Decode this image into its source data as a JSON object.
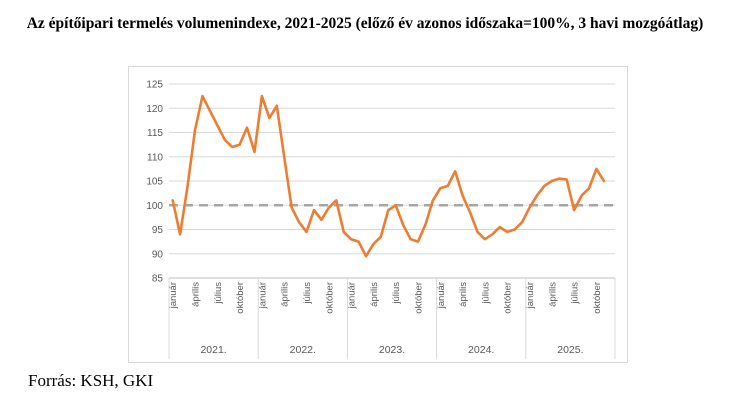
{
  "page": {
    "title": "Az építőipari termelés volumenindexe, 2021-2025 (előző év azonos időszaka=100%, 3 havi mozgóátlag)",
    "source": "Forrás: KSH, GKI"
  },
  "chart_data": {
    "type": "line",
    "title": "Az építőipari termelés volumenindexe, 2021-2025 (előző év azonos időszaka=100%, 3 havi mozgóátlag)",
    "unit": "%",
    "ylim": [
      85,
      125
    ],
    "y_ticks": [
      85,
      90,
      95,
      100,
      105,
      110,
      115,
      120,
      125
    ],
    "grid": true,
    "legend": "none",
    "reference_line": {
      "value": 100,
      "style": "dashed",
      "color": "#a6a6a6"
    },
    "x_structure": {
      "years": [
        {
          "label": "2021.",
          "months": 12
        },
        {
          "label": "2022.",
          "months": 12
        },
        {
          "label": "2023.",
          "months": 12
        },
        {
          "label": "2024.",
          "months": 12
        },
        {
          "label": "2025.",
          "months": 12
        }
      ],
      "month_tick_labels": [
        "január",
        "április",
        "július",
        "október"
      ],
      "month_tick_positions": [
        0,
        3,
        6,
        9
      ]
    },
    "series": [
      {
        "name": "építőipari termelés volumenindexe (3 havi mozgóátlag)",
        "color": "#ed7d31",
        "start": "2021. január",
        "end": "2025. november",
        "values": [
          101,
          94,
          104,
          115.5,
          122.5,
          119.5,
          116.5,
          113.5,
          112,
          112.5,
          116,
          111,
          122.5,
          118,
          120.5,
          110,
          99.5,
          96.5,
          94.5,
          99,
          97,
          99.5,
          101,
          94.5,
          93,
          92.5,
          89.5,
          92,
          93.5,
          99,
          100,
          96,
          93,
          92.5,
          96,
          101,
          103.5,
          104,
          107,
          102,
          98.5,
          94.5,
          93,
          94,
          95.5,
          94.5,
          95,
          96.5,
          99.5,
          102,
          104,
          105,
          105.5,
          105.3,
          99,
          102,
          103.5,
          107.5,
          105
        ]
      }
    ],
    "colors": {
      "series": "#ed7d31",
      "reference": "#a6a6a6",
      "grid": "#d9d9d9",
      "axis": "#bfbfbf",
      "labels": "#595959"
    }
  }
}
